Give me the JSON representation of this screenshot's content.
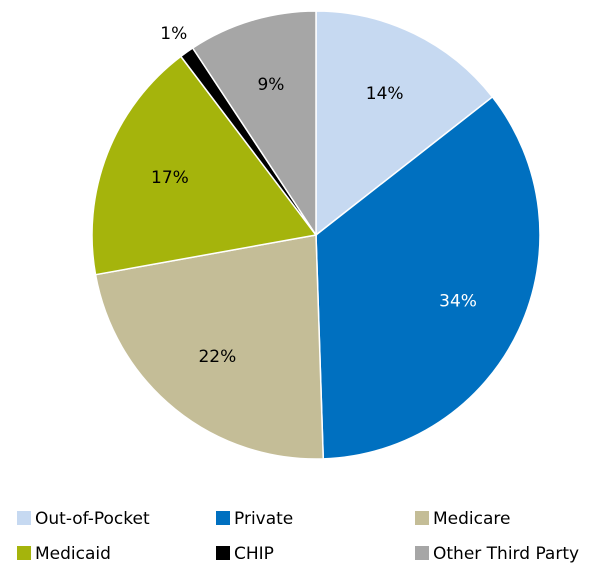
{
  "chart_data": {
    "type": "pie",
    "categories": [
      "Out-of-Pocket",
      "Private",
      "Medicare",
      "Medicaid",
      "CHIP",
      "Other Third Party"
    ],
    "values": [
      14,
      34,
      22,
      17,
      1,
      9
    ],
    "value_labels": [
      "14%",
      "34%",
      "22%",
      "17%",
      "1%",
      "9%"
    ],
    "colors": [
      "#c6d9f1",
      "#0070c0",
      "#c4bd97",
      "#a5b40c",
      "#000000",
      "#a6a6a6"
    ],
    "legend": "bottom"
  }
}
